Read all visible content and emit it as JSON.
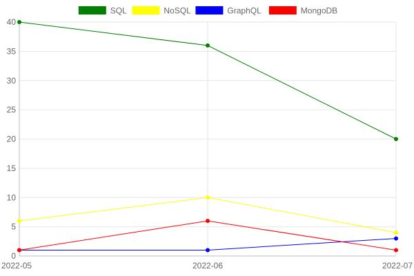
{
  "chart_data": {
    "type": "line",
    "categories": [
      "2022-05",
      "2022-06",
      "2022-07"
    ],
    "series": [
      {
        "name": "SQL",
        "color": "#008000",
        "values": [
          40,
          36,
          20
        ]
      },
      {
        "name": "NoSQL",
        "color": "#ffff00",
        "values": [
          6,
          10,
          4
        ]
      },
      {
        "name": "GraphQL",
        "color": "#0000ff",
        "values": [
          1,
          1,
          3
        ]
      },
      {
        "name": "MongoDB",
        "color": "#ff0000",
        "values": [
          1,
          6,
          1
        ]
      }
    ],
    "yticks": [
      "0",
      "5",
      "10",
      "15",
      "20",
      "25",
      "30",
      "35",
      "40"
    ],
    "ylim": [
      0,
      40
    ],
    "grid": true,
    "legend_position": "top"
  }
}
